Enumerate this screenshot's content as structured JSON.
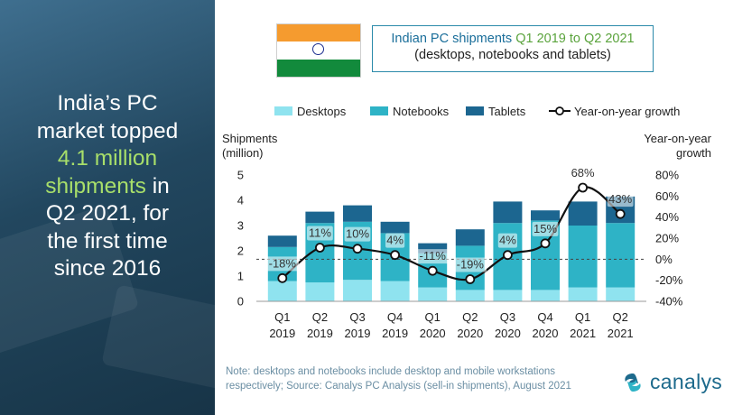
{
  "headline": {
    "line1": "India’s PC",
    "line2": "market topped",
    "highlight1": "4.1 million",
    "highlight2": "shipments",
    "after_highlight": " in",
    "line5": "Q2 2021, for",
    "line6": "the first time",
    "line7": "since 2016"
  },
  "title": {
    "prefix": "Indian PC shipments ",
    "period": "Q1 2019 to Q2 2021",
    "subtitle": "(desktops, notebooks and tablets)"
  },
  "note": {
    "line1": "Note: desktops and notebooks include desktop and mobile workstations",
    "line2": "respectively; Source: Canalys PC Analysis (sell-in shipments), August 2021"
  },
  "logo": {
    "text": "canalys",
    "icon": "canalys-swirl-icon"
  },
  "colors": {
    "desktops": "#8fe3ef",
    "notebooks": "#2eb3c6",
    "tablets": "#1c6690",
    "growth_line": "#111111",
    "left_panel": "#234a63",
    "highlight": "#a8df6a"
  },
  "chart_data": {
    "type": "bar",
    "stacked": true,
    "categories": [
      "Q1 2019",
      "Q2 2019",
      "Q3 2019",
      "Q4 2019",
      "Q1 2020",
      "Q2 2020",
      "Q3 2020",
      "Q4 2020",
      "Q1 2021",
      "Q2 2021"
    ],
    "tick_labels": [
      [
        "Q1",
        "2019"
      ],
      [
        "Q2",
        "2019"
      ],
      [
        "Q3",
        "2019"
      ],
      [
        "Q4",
        "2019"
      ],
      [
        "Q1",
        "2020"
      ],
      [
        "Q2",
        "2020"
      ],
      [
        "Q3",
        "2020"
      ],
      [
        "Q4",
        "2020"
      ],
      [
        "Q1",
        "2021"
      ],
      [
        "Q2",
        "2021"
      ]
    ],
    "series": [
      {
        "name": "Desktops",
        "values": [
          0.8,
          0.75,
          0.85,
          0.8,
          0.55,
          0.45,
          0.45,
          0.45,
          0.55,
          0.55
        ]
      },
      {
        "name": "Notebooks",
        "values": [
          1.35,
          2.35,
          2.3,
          1.9,
          1.35,
          1.75,
          2.65,
          2.75,
          2.45,
          2.55
        ]
      },
      {
        "name": "Tablets",
        "values": [
          0.45,
          0.45,
          0.65,
          0.45,
          0.4,
          0.65,
          0.85,
          0.4,
          0.95,
          1.05
        ]
      }
    ],
    "line_series": {
      "name": "Year-on-year growth",
      "values": [
        -18,
        11,
        10,
        4,
        -11,
        -19,
        4,
        15,
        68,
        43
      ],
      "labels": [
        "-18%",
        "11%",
        "10%",
        "4%",
        "-11%",
        "-19%",
        "4%",
        "15%",
        "68%",
        "43%"
      ]
    },
    "ylabel_left": [
      "Shipments",
      "(million)"
    ],
    "ylabel_right": [
      "Year-on-year",
      "growth"
    ],
    "ylim_left": [
      0,
      5
    ],
    "yticks_left": [
      "0",
      "1",
      "2",
      "3",
      "4",
      "5"
    ],
    "ylim_right": [
      -40,
      80
    ],
    "yticks_right": [
      "-40%",
      "-20%",
      "0%",
      "20%",
      "40%",
      "60%",
      "80%"
    ],
    "zero_line": "dashed",
    "legend_position": "top",
    "grid": false
  }
}
